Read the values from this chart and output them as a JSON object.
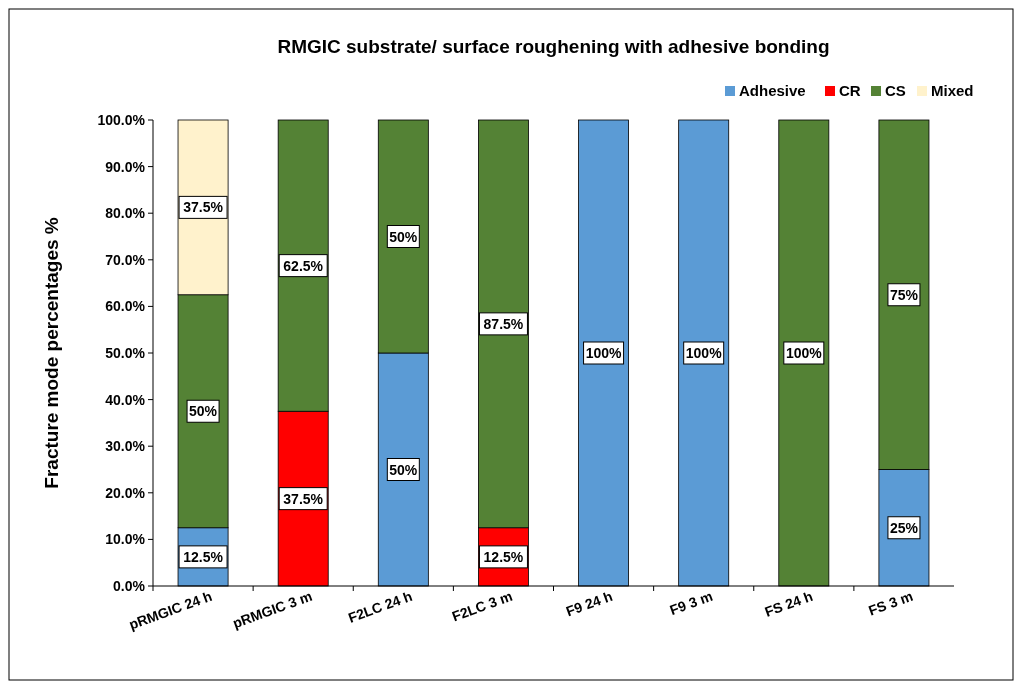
{
  "chart_data": {
    "type": "bar",
    "stacked": true,
    "title": "RMGIC substrate/ surface roughening with adhesive bonding",
    "ylabel": "Fracture mode percentages %",
    "categories": [
      "pRMGIC 24 h",
      "pRMGIC 3 m",
      "F2LC 24 h",
      "F2LC 3 m",
      "F9 24 h",
      "F9 3 m",
      "FS 24 h",
      "FS 3 m"
    ],
    "series": [
      {
        "name": "Adhesive",
        "color": "#5b9bd5",
        "values": [
          12.5,
          0,
          50,
          0,
          100,
          100,
          0,
          25
        ],
        "value_labels": [
          "12.5%",
          null,
          "50%",
          null,
          "100%",
          "100%",
          null,
          "25%"
        ]
      },
      {
        "name": "CR",
        "color": "#ff0000",
        "values": [
          0,
          37.5,
          0,
          12.5,
          0,
          0,
          0,
          0
        ],
        "value_labels": [
          null,
          "37.5%",
          null,
          "12.5%",
          null,
          null,
          null,
          null
        ]
      },
      {
        "name": "CS",
        "color": "#548235",
        "values": [
          50,
          62.5,
          50,
          87.5,
          0,
          0,
          100,
          75
        ],
        "value_labels": [
          "50%",
          "62.5%",
          "50%",
          "87.5%",
          null,
          null,
          "100%",
          "75%"
        ]
      },
      {
        "name": "Mixed",
        "color": "#fff2cc",
        "values": [
          37.5,
          0,
          0,
          0,
          0,
          0,
          0,
          0
        ],
        "value_labels": [
          "37.5%",
          null,
          null,
          null,
          null,
          null,
          null,
          null
        ]
      }
    ],
    "ylim": [
      0,
      100
    ],
    "yticks": [
      {
        "value": 0,
        "label": "0.0%"
      },
      {
        "value": 10,
        "label": "10.0%"
      },
      {
        "value": 20,
        "label": "20.0%"
      },
      {
        "value": 30,
        "label": "30.0%"
      },
      {
        "value": 40,
        "label": "40.0%"
      },
      {
        "value": 50,
        "label": "50.0%"
      },
      {
        "value": 60,
        "label": "60.0%"
      },
      {
        "value": 70,
        "label": "70.0%"
      },
      {
        "value": 80,
        "label": "80.0%"
      },
      {
        "value": 90,
        "label": "90.0%"
      },
      {
        "value": 100,
        "label": "100.0%"
      }
    ],
    "legend": "top right",
    "grid": false
  }
}
